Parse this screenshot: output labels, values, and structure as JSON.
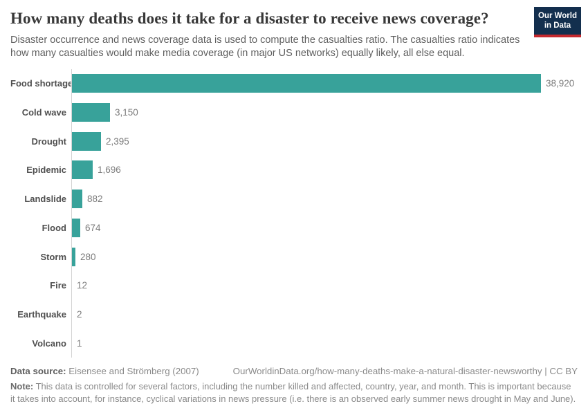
{
  "header": {
    "title": "How many deaths does it take for a disaster to receive news coverage?",
    "subtitle": "Disaster occurrence and news coverage data is used to compute the casualties ratio. The casualties ratio indicates how many casualties would make media coverage (in major US networks) equally likely, all else equal.",
    "logo": {
      "line1": "Our World",
      "line2": "in Data",
      "bg_color": "#132F4E",
      "stripe_color": "#C5292E"
    }
  },
  "chart_data": {
    "type": "bar",
    "orientation": "horizontal",
    "title": "How many deaths does it take for a disaster to receive news coverage?",
    "xlabel": "",
    "ylabel": "",
    "categories": [
      "Food shortage",
      "Cold wave",
      "Drought",
      "Epidemic",
      "Landslide",
      "Flood",
      "Storm",
      "Fire",
      "Earthquake",
      "Volcano"
    ],
    "values": [
      38920,
      3150,
      2395,
      1696,
      882,
      674,
      280,
      12,
      2,
      1
    ],
    "value_labels": [
      "38,920",
      "3,150",
      "2,395",
      "1,696",
      "882",
      "674",
      "280",
      "12",
      "2",
      "1"
    ],
    "xlim": [
      0,
      38920
    ],
    "grid": false,
    "legend": false,
    "bar_color": "#38A29A",
    "axis_line_color": "#d4d4d4"
  },
  "footer": {
    "source_label": "Data source:",
    "source_text": " Eisensee and Strömberg (2007)",
    "link_text": "OurWorldinData.org/how-many-deaths-make-a-natural-disaster-newsworthy | CC BY",
    "note_label": "Note:",
    "note_text": " This data is controlled for several factors, including the number killed and affected, country, year, and month. This is important because it takes into account, for instance, cyclical variations in news pressure (i.e. there is an observed early summer news drought in May and June)."
  }
}
